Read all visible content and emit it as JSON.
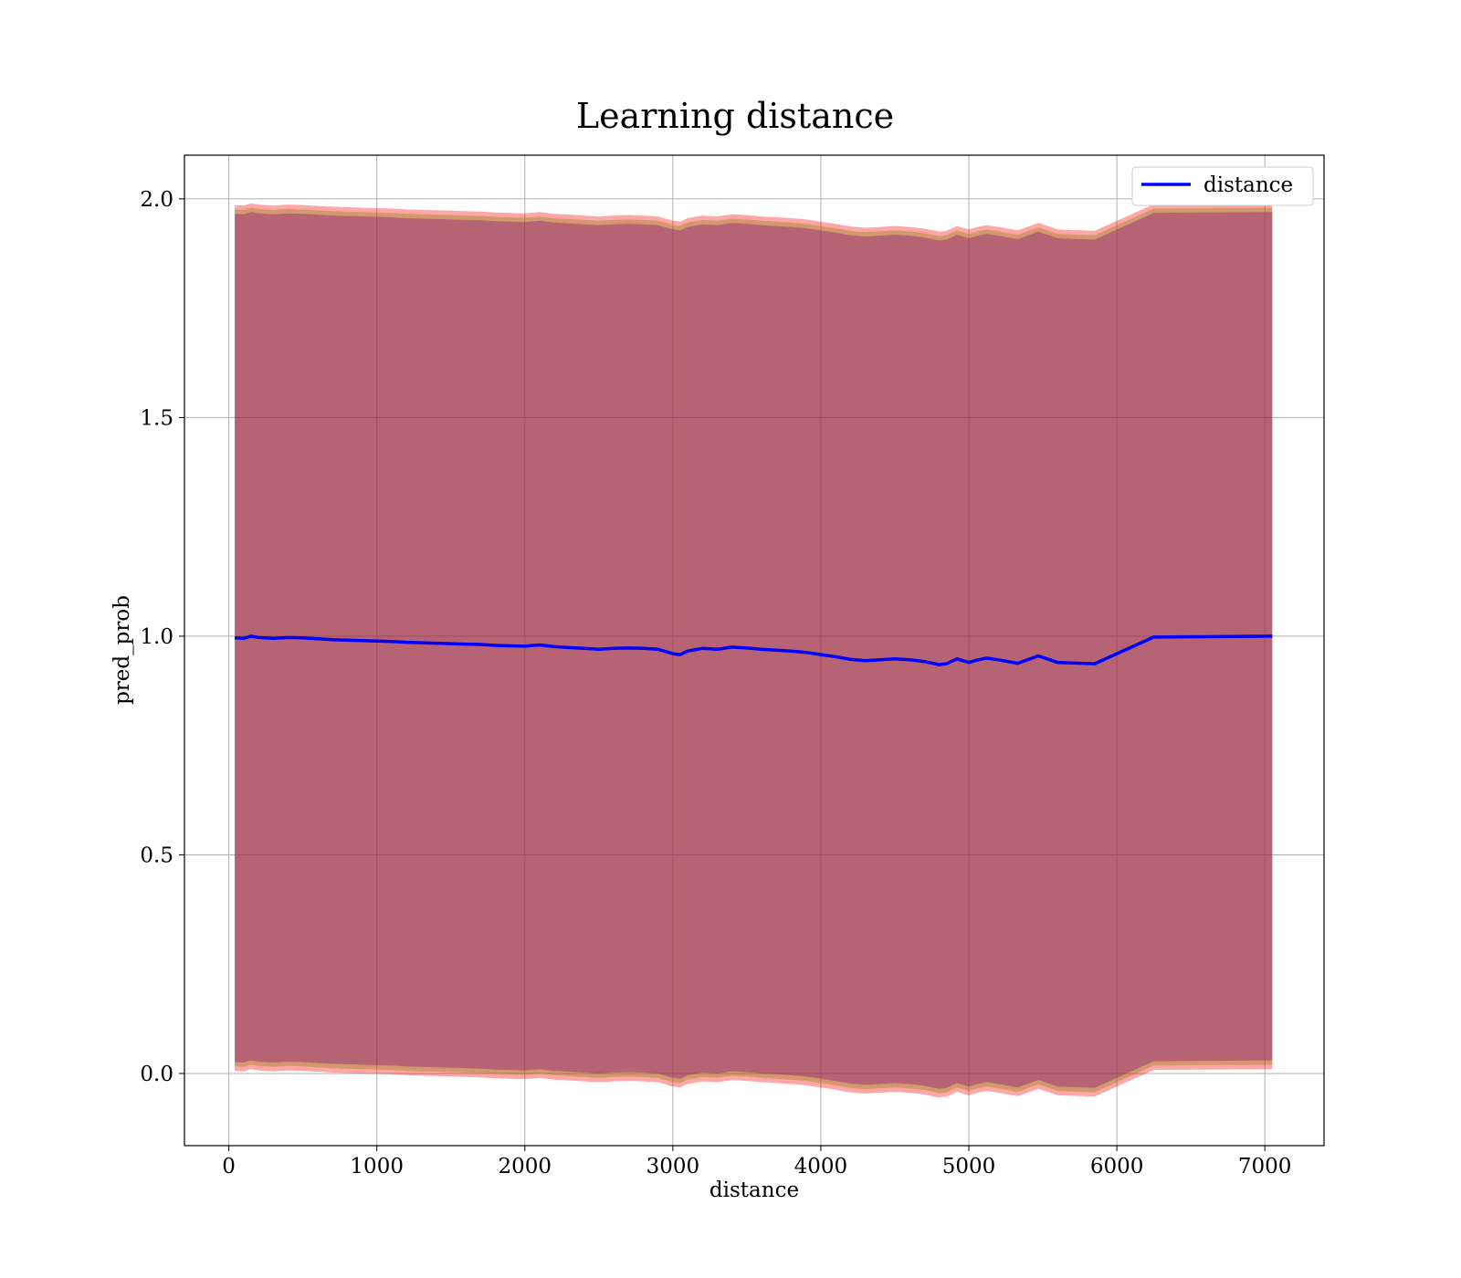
{
  "chart_data": {
    "type": "line",
    "title": "Learning distance",
    "xlabel": "distance",
    "ylabel": "pred_prob",
    "xlim": [
      -300,
      7400
    ],
    "ylim": [
      -0.165,
      2.1
    ],
    "xticks": [
      0,
      1000,
      2000,
      3000,
      4000,
      5000,
      6000,
      7000
    ],
    "xtick_labels": [
      "0",
      "1000",
      "2000",
      "3000",
      "4000",
      "5000",
      "6000",
      "7000"
    ],
    "yticks": [
      0.0,
      0.5,
      1.0,
      1.5,
      2.0
    ],
    "ytick_labels": [
      "0.0",
      "0.5",
      "1.0",
      "1.5",
      "2.0"
    ],
    "grid": true,
    "legend_position": "top-right",
    "series": [
      {
        "name": "distance",
        "color": "#0000ff",
        "x": [
          40,
          100,
          150,
          200,
          300,
          400,
          500,
          600,
          700,
          800,
          900,
          1000,
          1100,
          1200,
          1300,
          1400,
          1500,
          1600,
          1700,
          1800,
          1900,
          2000,
          2100,
          2200,
          2300,
          2400,
          2500,
          2600,
          2700,
          2800,
          2900,
          3000,
          3050,
          3100,
          3200,
          3300,
          3400,
          3500,
          3600,
          3700,
          3800,
          3900,
          4000,
          4100,
          4200,
          4300,
          4400,
          4500,
          4600,
          4700,
          4800,
          4850,
          4920,
          5000,
          5050,
          5120,
          5200,
          5330,
          5470,
          5600,
          5850,
          6250,
          7050
        ],
        "y": [
          0.996,
          0.995,
          1.0,
          0.997,
          0.995,
          0.997,
          0.996,
          0.994,
          0.992,
          0.991,
          0.99,
          0.989,
          0.988,
          0.986,
          0.985,
          0.984,
          0.983,
          0.982,
          0.981,
          0.979,
          0.978,
          0.977,
          0.98,
          0.976,
          0.974,
          0.972,
          0.97,
          0.972,
          0.973,
          0.972,
          0.97,
          0.96,
          0.958,
          0.966,
          0.972,
          0.97,
          0.975,
          0.973,
          0.97,
          0.968,
          0.966,
          0.963,
          0.958,
          0.953,
          0.947,
          0.944,
          0.946,
          0.948,
          0.946,
          0.942,
          0.935,
          0.937,
          0.948,
          0.94,
          0.945,
          0.95,
          0.946,
          0.938,
          0.955,
          0.94,
          0.937,
          0.998,
          1.0
        ]
      }
    ],
    "bands": [
      {
        "color": "#ff0000",
        "opacity": 0.35,
        "offset": 0.99
      },
      {
        "color": "#808000",
        "opacity": 0.35,
        "offset": 0.98
      },
      {
        "color": "#800080",
        "opacity": 0.35,
        "offset": 0.97
      }
    ]
  }
}
